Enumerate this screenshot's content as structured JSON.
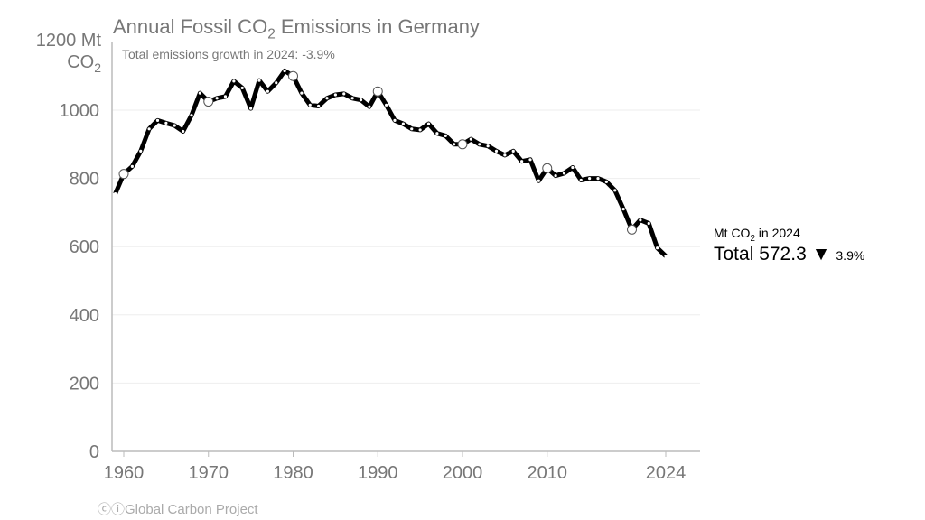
{
  "chart_data": {
    "type": "line",
    "title": "Annual Fossil CO2 Emissions in Germany",
    "subtitle": "Total emissions growth in 2024: -3.9%",
    "ylabel": "Mt CO2",
    "ylabel_top": "1200 Mt",
    "ylim": [
      0,
      1200
    ],
    "xlim": [
      1959,
      2024
    ],
    "yticks": [
      "0",
      "200",
      "400",
      "600",
      "800",
      "1000"
    ],
    "xticks": [
      "1960",
      "1970",
      "1980",
      "1990",
      "2000",
      "2010",
      "2024"
    ],
    "grid": true,
    "x": [
      1959,
      1960,
      1961,
      1962,
      1963,
      1964,
      1965,
      1966,
      1967,
      1968,
      1969,
      1970,
      1971,
      1972,
      1973,
      1974,
      1975,
      1976,
      1977,
      1978,
      1979,
      1980,
      1981,
      1982,
      1983,
      1984,
      1985,
      1986,
      1987,
      1988,
      1989,
      1990,
      1991,
      1992,
      1993,
      1994,
      1995,
      1996,
      1997,
      1998,
      1999,
      2000,
      2001,
      2002,
      2003,
      2004,
      2005,
      2006,
      2007,
      2008,
      2009,
      2010,
      2011,
      2012,
      2013,
      2014,
      2015,
      2016,
      2017,
      2018,
      2019,
      2020,
      2021,
      2022,
      2023,
      2024
    ],
    "series": [
      {
        "values": [
          755,
          813,
          835,
          880,
          945,
          970,
          962,
          955,
          938,
          985,
          1050,
          1025,
          1035,
          1040,
          1085,
          1065,
          1005,
          1087,
          1055,
          1080,
          1115,
          1100,
          1050,
          1015,
          1012,
          1035,
          1045,
          1048,
          1035,
          1030,
          1010,
          1055,
          1015,
          970,
          960,
          945,
          942,
          960,
          932,
          925,
          900,
          900,
          915,
          900,
          895,
          880,
          868,
          880,
          850,
          855,
          793,
          830,
          808,
          815,
          832,
          795,
          800,
          800,
          790,
          765,
          710,
          650,
          678,
          668,
          596,
          572.3
        ],
        "color": "#000000"
      }
    ],
    "highlighted_years": [
      1960,
      1970,
      1980,
      1990,
      2000,
      2010,
      2020
    ],
    "annotation": {
      "unit": "Mt CO2 in 2024",
      "total_label": "Total 572.3",
      "change": "3.9%",
      "direction": "down"
    }
  },
  "credit": "Global Carbon Project"
}
